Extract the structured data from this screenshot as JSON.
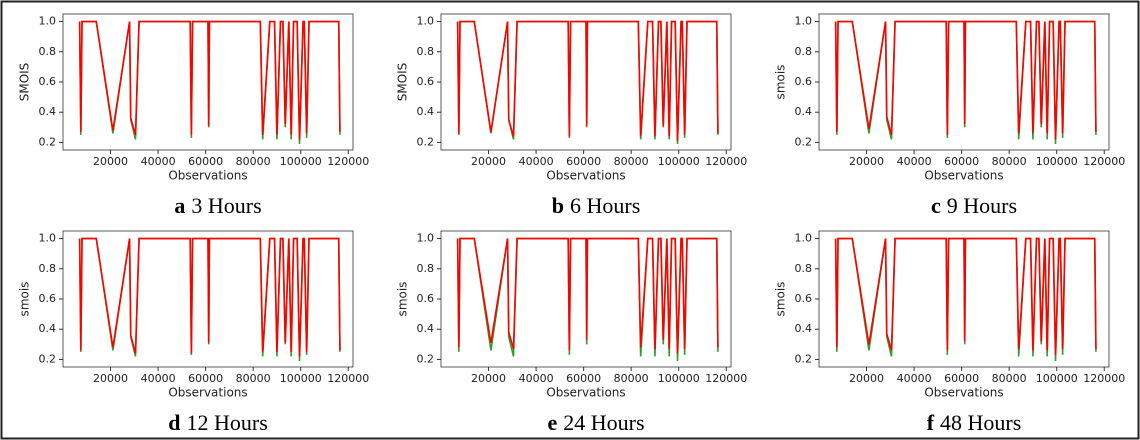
{
  "chart_data": [
    {
      "type": "line",
      "panel": "a",
      "caption": "3 Hours",
      "ylabel": "SMOIS",
      "xlabel": "Observations",
      "x": [
        7000,
        7500,
        8000,
        8500,
        14000,
        21000,
        28000,
        28500,
        30500,
        32000,
        53500,
        54000,
        54500,
        61000,
        61300,
        61600,
        83000,
        84000,
        87000,
        89000,
        90000,
        91500,
        92500,
        93500,
        95000,
        96000,
        97000,
        98500,
        99500,
        101000,
        101500,
        102500,
        103500,
        105000,
        110000,
        116000,
        116500
      ],
      "series": [
        {
          "color": "#2ca02c",
          "values": [
            1.0,
            0.25,
            1.0,
            1.0,
            1.0,
            0.26,
            1.0,
            0.35,
            0.22,
            1.0,
            1.0,
            0.23,
            1.0,
            1.0,
            0.3,
            1.0,
            1.0,
            0.22,
            1.0,
            1.0,
            0.22,
            1.0,
            1.0,
            0.3,
            1.0,
            0.22,
            1.0,
            1.0,
            0.19,
            1.0,
            1.0,
            0.23,
            1.0,
            1.0,
            1.0,
            1.0,
            0.25
          ]
        },
        {
          "color": "#ff0000",
          "values": [
            1.0,
            0.27,
            1.0,
            1.0,
            1.0,
            0.28,
            1.0,
            0.36,
            0.25,
            1.0,
            1.0,
            0.25,
            1.0,
            1.0,
            0.31,
            1.0,
            1.0,
            0.25,
            1.0,
            1.0,
            0.25,
            1.0,
            1.0,
            0.32,
            1.0,
            0.25,
            1.0,
            1.0,
            0.22,
            1.0,
            1.0,
            0.26,
            1.0,
            1.0,
            1.0,
            1.0,
            0.27
          ]
        }
      ],
      "xlim": [
        0,
        122000
      ],
      "xticks": [
        20000,
        40000,
        60000,
        80000,
        100000,
        120000
      ],
      "ylim": [
        0.15,
        1.05
      ],
      "yticks": [
        0.2,
        0.4,
        0.6,
        0.8,
        {
          "value": 1,
          "label": "1.0"
        }
      ]
    },
    {
      "type": "line",
      "panel": "b",
      "caption": "6 Hours",
      "ylabel": "SMOIS",
      "xlabel": "Observations",
      "x": [
        7000,
        7500,
        8000,
        8500,
        14000,
        21000,
        28000,
        28500,
        30500,
        32000,
        53500,
        54000,
        54500,
        61000,
        61300,
        61600,
        83000,
        84000,
        87000,
        89000,
        90000,
        91500,
        92500,
        93500,
        95000,
        96000,
        97000,
        98500,
        99500,
        101000,
        101500,
        102500,
        103500,
        105000,
        110000,
        116000,
        116500
      ],
      "series": [
        {
          "color": "#2ca02c",
          "values": [
            1.0,
            0.25,
            1.0,
            1.0,
            1.0,
            0.26,
            1.0,
            0.35,
            0.22,
            1.0,
            1.0,
            0.23,
            1.0,
            1.0,
            0.3,
            1.0,
            1.0,
            0.22,
            1.0,
            1.0,
            0.22,
            1.0,
            1.0,
            0.3,
            1.0,
            0.22,
            1.0,
            1.0,
            0.19,
            1.0,
            1.0,
            0.23,
            1.0,
            1.0,
            1.0,
            1.0,
            0.25
          ]
        },
        {
          "color": "#ff0000",
          "values": [
            1.0,
            0.26,
            1.0,
            1.0,
            1.0,
            0.27,
            1.0,
            0.35,
            0.24,
            1.0,
            1.0,
            0.24,
            1.0,
            1.0,
            0.31,
            1.0,
            1.0,
            0.24,
            1.0,
            1.0,
            0.24,
            1.0,
            1.0,
            0.31,
            1.0,
            0.24,
            1.0,
            1.0,
            0.21,
            1.0,
            1.0,
            0.25,
            1.0,
            1.0,
            1.0,
            1.0,
            0.26
          ]
        }
      ],
      "xlim": [
        0,
        122000
      ],
      "xticks": [
        20000,
        40000,
        60000,
        80000,
        100000,
        120000
      ],
      "ylim": [
        0.15,
        1.05
      ],
      "yticks": [
        0.2,
        0.4,
        0.6,
        0.8,
        {
          "value": 1,
          "label": "1.0"
        }
      ]
    },
    {
      "type": "line",
      "panel": "c",
      "caption": "9 Hours",
      "ylabel": "smois",
      "xlabel": "Observations",
      "x": [
        7000,
        7500,
        8000,
        8500,
        14000,
        21000,
        28000,
        28500,
        30500,
        32000,
        53500,
        54000,
        54500,
        61000,
        61300,
        61600,
        83000,
        84000,
        87000,
        89000,
        90000,
        91500,
        92500,
        93500,
        95000,
        96000,
        97000,
        98500,
        99500,
        101000,
        101500,
        102500,
        103500,
        105000,
        110000,
        116000,
        116500
      ],
      "series": [
        {
          "color": "#2ca02c",
          "values": [
            1.0,
            0.25,
            1.0,
            1.0,
            1.0,
            0.26,
            1.0,
            0.35,
            0.22,
            1.0,
            1.0,
            0.23,
            1.0,
            1.0,
            0.3,
            1.0,
            1.0,
            0.22,
            1.0,
            1.0,
            0.22,
            1.0,
            1.0,
            0.3,
            1.0,
            0.22,
            1.0,
            1.0,
            0.19,
            1.0,
            1.0,
            0.23,
            1.0,
            1.0,
            1.0,
            1.0,
            0.25
          ]
        },
        {
          "color": "#ff0000",
          "values": [
            1.0,
            0.27,
            1.0,
            1.0,
            1.0,
            0.29,
            1.0,
            0.37,
            0.25,
            1.0,
            1.0,
            0.25,
            1.0,
            1.0,
            0.32,
            1.0,
            1.0,
            0.26,
            1.0,
            1.0,
            0.26,
            1.0,
            1.0,
            0.32,
            1.0,
            0.26,
            1.0,
            1.0,
            0.22,
            1.0,
            1.0,
            0.26,
            1.0,
            1.0,
            1.0,
            1.0,
            0.27
          ]
        }
      ],
      "xlim": [
        0,
        122000
      ],
      "xticks": [
        20000,
        40000,
        60000,
        80000,
        100000,
        120000
      ],
      "ylim": [
        0.15,
        1.05
      ],
      "yticks": [
        0.2,
        0.4,
        0.6,
        0.8,
        {
          "value": 1,
          "label": "1.0"
        }
      ]
    },
    {
      "type": "line",
      "panel": "d",
      "caption": "12 Hours",
      "ylabel": "smois",
      "xlabel": "Observations",
      "x": [
        7000,
        7500,
        8000,
        8500,
        14000,
        21000,
        28000,
        28500,
        30500,
        32000,
        53500,
        54000,
        54500,
        61000,
        61300,
        61600,
        83000,
        84000,
        87000,
        89000,
        90000,
        91500,
        92500,
        93500,
        95000,
        96000,
        97000,
        98500,
        99500,
        101000,
        101500,
        102500,
        103500,
        105000,
        110000,
        116000,
        116500
      ],
      "series": [
        {
          "color": "#2ca02c",
          "values": [
            1.0,
            0.25,
            1.0,
            1.0,
            1.0,
            0.26,
            1.0,
            0.35,
            0.22,
            1.0,
            1.0,
            0.23,
            1.0,
            1.0,
            0.3,
            1.0,
            1.0,
            0.22,
            1.0,
            1.0,
            0.22,
            1.0,
            1.0,
            0.3,
            1.0,
            0.22,
            1.0,
            1.0,
            0.19,
            1.0,
            1.0,
            0.23,
            1.0,
            1.0,
            1.0,
            1.0,
            0.25
          ]
        },
        {
          "color": "#ff0000",
          "values": [
            1.0,
            0.26,
            1.0,
            1.0,
            1.0,
            0.28,
            1.0,
            0.36,
            0.24,
            1.0,
            1.0,
            0.24,
            1.0,
            1.0,
            0.31,
            1.0,
            1.0,
            0.25,
            1.0,
            1.0,
            0.25,
            1.0,
            1.0,
            0.31,
            1.0,
            0.25,
            1.0,
            1.0,
            0.22,
            1.0,
            1.0,
            0.25,
            1.0,
            1.0,
            1.0,
            1.0,
            0.26
          ]
        }
      ],
      "xlim": [
        0,
        122000
      ],
      "xticks": [
        20000,
        40000,
        60000,
        80000,
        100000,
        120000
      ],
      "ylim": [
        0.15,
        1.05
      ],
      "yticks": [
        0.2,
        0.4,
        0.6,
        0.8,
        {
          "value": 1,
          "label": "1.0"
        }
      ]
    },
    {
      "type": "line",
      "panel": "e",
      "caption": "24 Hours",
      "ylabel": "smois",
      "xlabel": "Observations",
      "x": [
        7000,
        7500,
        8000,
        8500,
        14000,
        21000,
        28000,
        28500,
        30500,
        32000,
        53500,
        54000,
        54500,
        61000,
        61300,
        61600,
        83000,
        84000,
        87000,
        89000,
        90000,
        91500,
        92500,
        93500,
        95000,
        96000,
        97000,
        98500,
        99500,
        101000,
        101500,
        102500,
        103500,
        105000,
        110000,
        116000,
        116500
      ],
      "series": [
        {
          "color": "#2ca02c",
          "values": [
            1.0,
            0.25,
            1.0,
            1.0,
            1.0,
            0.26,
            1.0,
            0.35,
            0.22,
            1.0,
            1.0,
            0.23,
            1.0,
            1.0,
            0.3,
            1.0,
            1.0,
            0.22,
            1.0,
            1.0,
            0.22,
            1.0,
            1.0,
            0.3,
            1.0,
            0.22,
            1.0,
            1.0,
            0.19,
            1.0,
            1.0,
            0.23,
            1.0,
            1.0,
            1.0,
            1.0,
            0.25
          ]
        },
        {
          "color": "#ff0000",
          "values": [
            1.0,
            0.28,
            1.0,
            1.0,
            1.0,
            0.31,
            1.0,
            0.38,
            0.27,
            1.0,
            1.0,
            0.26,
            1.0,
            1.0,
            0.33,
            1.0,
            1.0,
            0.28,
            1.0,
            1.0,
            0.27,
            1.0,
            1.0,
            0.33,
            1.0,
            0.27,
            1.0,
            1.0,
            0.24,
            1.0,
            1.0,
            0.27,
            1.0,
            1.0,
            1.0,
            1.0,
            0.28
          ]
        }
      ],
      "xlim": [
        0,
        122000
      ],
      "xticks": [
        20000,
        40000,
        60000,
        80000,
        100000,
        120000
      ],
      "ylim": [
        0.15,
        1.05
      ],
      "yticks": [
        0.2,
        0.4,
        0.6,
        0.8,
        {
          "value": 1,
          "label": "1.0"
        }
      ]
    },
    {
      "type": "line",
      "panel": "f",
      "caption": "48 Hours",
      "ylabel": "smois",
      "xlabel": "Observations",
      "x": [
        7000,
        7500,
        8000,
        8500,
        14000,
        21000,
        28000,
        28500,
        30500,
        32000,
        53500,
        54000,
        54500,
        61000,
        61300,
        61600,
        83000,
        84000,
        87000,
        89000,
        90000,
        91500,
        92500,
        93500,
        95000,
        96000,
        97000,
        98500,
        99500,
        101000,
        101500,
        102500,
        103500,
        105000,
        110000,
        116000,
        116500
      ],
      "series": [
        {
          "color": "#2ca02c",
          "values": [
            1.0,
            0.25,
            1.0,
            1.0,
            1.0,
            0.26,
            1.0,
            0.35,
            0.22,
            1.0,
            1.0,
            0.23,
            1.0,
            1.0,
            0.3,
            1.0,
            1.0,
            0.22,
            1.0,
            1.0,
            0.22,
            1.0,
            1.0,
            0.3,
            1.0,
            0.22,
            1.0,
            1.0,
            0.19,
            1.0,
            1.0,
            0.23,
            1.0,
            1.0,
            1.0,
            1.0,
            0.25
          ]
        },
        {
          "color": "#ff0000",
          "values": [
            1.0,
            0.28,
            1.0,
            1.0,
            1.0,
            0.3,
            1.0,
            0.37,
            0.26,
            1.0,
            1.0,
            0.26,
            1.0,
            1.0,
            0.32,
            1.0,
            1.0,
            0.27,
            1.0,
            1.0,
            0.26,
            1.0,
            1.0,
            0.32,
            1.0,
            0.26,
            1.0,
            1.0,
            0.23,
            1.0,
            1.0,
            0.27,
            1.0,
            1.0,
            1.0,
            1.0,
            0.27
          ]
        }
      ],
      "xlim": [
        0,
        122000
      ],
      "xticks": [
        20000,
        40000,
        60000,
        80000,
        100000,
        120000
      ],
      "ylim": [
        0.15,
        1.05
      ],
      "yticks": [
        0.2,
        0.4,
        0.6,
        0.8,
        {
          "value": 1,
          "label": "1.0"
        }
      ]
    }
  ]
}
